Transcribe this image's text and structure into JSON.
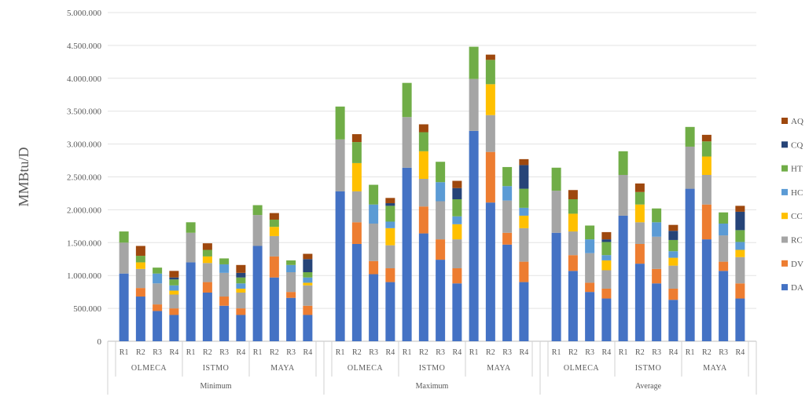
{
  "chart_data": {
    "type": "bar",
    "stacked": true,
    "ylabel": "MMBtu/D",
    "ylim": [
      0,
      5000000
    ],
    "yticks": [
      0,
      500000,
      1000000,
      1500000,
      2000000,
      2500000,
      3000000,
      3500000,
      4000000,
      4500000,
      5000000
    ],
    "ytick_labels": [
      "0",
      "500.000",
      "1.000.000",
      "1.500.000",
      "2.000.000",
      "2.500.000",
      "3.000.000",
      "3.500.000",
      "4.000.000",
      "4.500.000",
      "5.000.000"
    ],
    "grid": true,
    "legend_position": "right",
    "scenario_groups": [
      {
        "label": "Minimum",
        "fields": [
          "OLMECA",
          "ISTMO",
          "MAYA"
        ]
      },
      {
        "label": "Maximum",
        "fields": [
          "OLMECA",
          "ISTMO",
          "MAYA"
        ]
      },
      {
        "label": "Average",
        "fields": [
          "OLMECA",
          "ISTMO",
          "MAYA"
        ]
      }
    ],
    "runs": [
      "R1",
      "R2",
      "R3",
      "R4"
    ],
    "series": [
      {
        "name": "DA",
        "color": "#4472C4",
        "values": [
          1030000,
          680000,
          460000,
          400000,
          1200000,
          740000,
          540000,
          400000,
          1450000,
          970000,
          660000,
          400000,
          2280000,
          1480000,
          1020000,
          900000,
          2640000,
          1640000,
          1240000,
          880000,
          3200000,
          2110000,
          1470000,
          900000,
          1650000,
          1070000,
          750000,
          650000,
          1910000,
          1180000,
          880000,
          630000,
          2320000,
          1550000,
          1070000,
          650000
        ]
      },
      {
        "name": "DV",
        "color": "#ED7D31",
        "values": [
          0,
          130000,
          100000,
          100000,
          0,
          160000,
          140000,
          100000,
          0,
          320000,
          90000,
          140000,
          0,
          330000,
          200000,
          210000,
          0,
          410000,
          310000,
          230000,
          0,
          770000,
          180000,
          310000,
          0,
          240000,
          140000,
          150000,
          0,
          300000,
          220000,
          170000,
          0,
          530000,
          140000,
          230000
        ]
      },
      {
        "name": "RC",
        "color": "#A5A5A5",
        "values": [
          470000,
          290000,
          320000,
          210000,
          450000,
          290000,
          360000,
          240000,
          470000,
          310000,
          300000,
          310000,
          790000,
          470000,
          570000,
          350000,
          770000,
          420000,
          580000,
          440000,
          790000,
          560000,
          490000,
          510000,
          640000,
          360000,
          450000,
          280000,
          620000,
          330000,
          490000,
          350000,
          640000,
          450000,
          400000,
          400000
        ]
      },
      {
        "name": "CC",
        "color": "#FFC000",
        "values": [
          0,
          100000,
          0,
          60000,
          0,
          100000,
          0,
          60000,
          0,
          140000,
          0,
          40000,
          0,
          430000,
          0,
          260000,
          0,
          420000,
          0,
          230000,
          0,
          470000,
          0,
          190000,
          0,
          270000,
          0,
          150000,
          0,
          270000,
          0,
          120000,
          0,
          280000,
          0,
          110000
        ]
      },
      {
        "name": "HC",
        "color": "#5B9BD5",
        "values": [
          0,
          0,
          150000,
          80000,
          0,
          0,
          130000,
          80000,
          0,
          0,
          110000,
          80000,
          0,
          0,
          290000,
          100000,
          0,
          0,
          290000,
          120000,
          0,
          0,
          220000,
          120000,
          0,
          0,
          210000,
          80000,
          0,
          0,
          220000,
          100000,
          0,
          0,
          180000,
          120000
        ]
      },
      {
        "name": "HT",
        "color": "#70AD47",
        "values": [
          170000,
          100000,
          90000,
          90000,
          160000,
          100000,
          90000,
          90000,
          150000,
          110000,
          70000,
          80000,
          500000,
          320000,
          300000,
          240000,
          520000,
          290000,
          310000,
          260000,
          490000,
          370000,
          290000,
          290000,
          350000,
          220000,
          210000,
          200000,
          360000,
          190000,
          210000,
          170000,
          300000,
          230000,
          170000,
          180000
        ]
      },
      {
        "name": "CQ",
        "color": "#264478",
        "values": [
          0,
          0,
          0,
          30000,
          0,
          0,
          0,
          70000,
          0,
          0,
          0,
          200000,
          0,
          0,
          0,
          40000,
          0,
          0,
          0,
          170000,
          0,
          0,
          0,
          360000,
          0,
          0,
          0,
          40000,
          0,
          0,
          0,
          140000,
          0,
          0,
          0,
          280000
        ]
      },
      {
        "name": "AQ",
        "color": "#9E480E",
        "values": [
          0,
          150000,
          0,
          100000,
          0,
          100000,
          0,
          120000,
          0,
          100000,
          0,
          80000,
          0,
          120000,
          0,
          80000,
          0,
          120000,
          0,
          110000,
          0,
          80000,
          0,
          90000,
          0,
          140000,
          0,
          110000,
          0,
          130000,
          0,
          90000,
          0,
          100000,
          0,
          90000
        ]
      }
    ]
  }
}
